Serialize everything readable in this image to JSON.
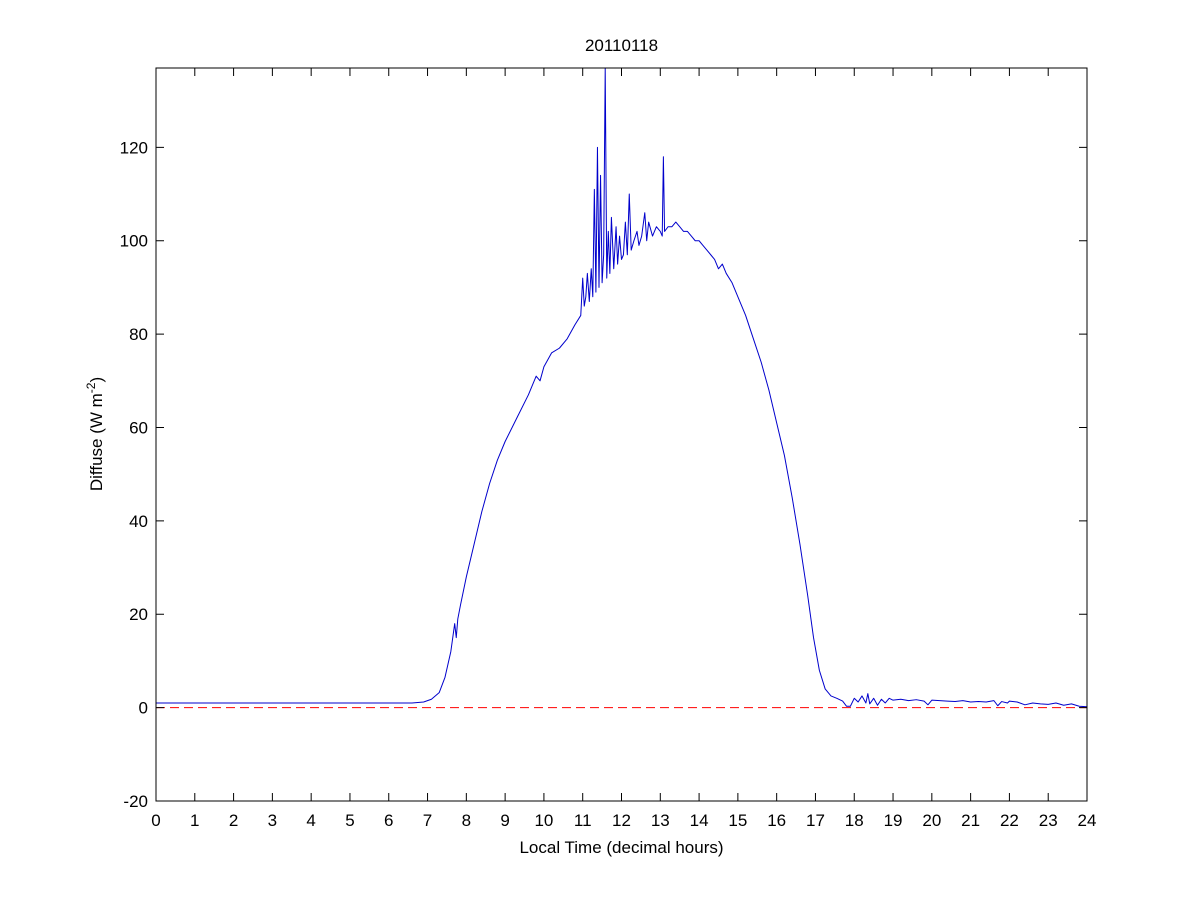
{
  "chart_data": {
    "type": "line",
    "title": "20110118",
    "xlabel": "Local Time (decimal hours)",
    "ylabel_main": "Diffuse (W m",
    "ylabel_sup": "-2",
    "ylabel_close": ")",
    "xlim": [
      0,
      24
    ],
    "ylim": [
      -20,
      137
    ],
    "xticks": [
      0,
      1,
      2,
      3,
      4,
      5,
      6,
      7,
      8,
      9,
      10,
      11,
      12,
      13,
      14,
      15,
      16,
      17,
      18,
      19,
      20,
      21,
      22,
      23,
      24
    ],
    "yticks": [
      -20,
      0,
      20,
      40,
      60,
      80,
      100,
      120
    ],
    "grid": false,
    "series": [
      {
        "color": "#0000cc",
        "style": "solid",
        "points": [
          [
            0,
            1.0
          ],
          [
            0.5,
            1.0
          ],
          [
            1,
            1.0
          ],
          [
            2,
            1.0
          ],
          [
            3,
            1.0
          ],
          [
            4,
            1.0
          ],
          [
            5,
            1.0
          ],
          [
            6,
            1.0
          ],
          [
            6.6,
            1.0
          ],
          [
            6.9,
            1.2
          ],
          [
            7.1,
            1.8
          ],
          [
            7.3,
            3.2
          ],
          [
            7.45,
            6.5
          ],
          [
            7.6,
            12
          ],
          [
            7.7,
            18
          ],
          [
            7.74,
            15
          ],
          [
            7.78,
            19
          ],
          [
            7.85,
            22
          ],
          [
            8.0,
            28
          ],
          [
            8.2,
            35
          ],
          [
            8.4,
            42
          ],
          [
            8.6,
            48
          ],
          [
            8.8,
            53
          ],
          [
            9.0,
            57
          ],
          [
            9.3,
            62
          ],
          [
            9.6,
            67
          ],
          [
            9.8,
            71
          ],
          [
            9.9,
            70
          ],
          [
            10.0,
            73
          ],
          [
            10.2,
            76
          ],
          [
            10.4,
            77
          ],
          [
            10.6,
            79
          ],
          [
            10.8,
            82
          ],
          [
            10.95,
            84
          ],
          [
            11.0,
            92
          ],
          [
            11.04,
            86
          ],
          [
            11.08,
            88
          ],
          [
            11.12,
            93
          ],
          [
            11.17,
            87
          ],
          [
            11.22,
            94
          ],
          [
            11.26,
            88
          ],
          [
            11.3,
            111
          ],
          [
            11.34,
            89
          ],
          [
            11.38,
            120
          ],
          [
            11.42,
            90
          ],
          [
            11.46,
            114
          ],
          [
            11.5,
            91
          ],
          [
            11.54,
            97
          ],
          [
            11.58,
            137
          ],
          [
            11.62,
            92
          ],
          [
            11.66,
            102
          ],
          [
            11.7,
            93
          ],
          [
            11.74,
            105
          ],
          [
            11.8,
            94
          ],
          [
            11.86,
            103
          ],
          [
            11.9,
            95
          ],
          [
            11.95,
            101
          ],
          [
            12.0,
            96
          ],
          [
            12.05,
            97
          ],
          [
            12.1,
            104
          ],
          [
            12.15,
            97
          ],
          [
            12.2,
            110
          ],
          [
            12.25,
            98
          ],
          [
            12.32,
            100
          ],
          [
            12.4,
            102
          ],
          [
            12.45,
            99
          ],
          [
            12.52,
            101
          ],
          [
            12.6,
            106
          ],
          [
            12.65,
            100
          ],
          [
            12.7,
            104
          ],
          [
            12.8,
            101
          ],
          [
            12.9,
            103
          ],
          [
            13.0,
            102
          ],
          [
            13.05,
            101
          ],
          [
            13.08,
            118
          ],
          [
            13.11,
            102
          ],
          [
            13.2,
            103
          ],
          [
            13.3,
            103
          ],
          [
            13.4,
            104
          ],
          [
            13.5,
            103
          ],
          [
            13.6,
            102
          ],
          [
            13.7,
            102
          ],
          [
            13.8,
            101
          ],
          [
            13.9,
            100
          ],
          [
            14.0,
            100
          ],
          [
            14.1,
            99
          ],
          [
            14.2,
            98
          ],
          [
            14.3,
            97
          ],
          [
            14.4,
            96
          ],
          [
            14.5,
            94
          ],
          [
            14.6,
            95
          ],
          [
            14.7,
            93
          ],
          [
            14.85,
            91
          ],
          [
            15.0,
            88
          ],
          [
            15.2,
            84
          ],
          [
            15.4,
            79
          ],
          [
            15.6,
            74
          ],
          [
            15.8,
            68
          ],
          [
            16.0,
            61
          ],
          [
            16.2,
            54
          ],
          [
            16.4,
            45
          ],
          [
            16.6,
            35
          ],
          [
            16.8,
            24
          ],
          [
            16.95,
            15
          ],
          [
            17.1,
            8
          ],
          [
            17.25,
            4
          ],
          [
            17.4,
            2.5
          ],
          [
            17.55,
            2.0
          ],
          [
            17.7,
            1.4
          ],
          [
            17.8,
            0.3
          ],
          [
            17.9,
            0.3
          ],
          [
            18.0,
            2.0
          ],
          [
            18.1,
            1.2
          ],
          [
            18.2,
            2.5
          ],
          [
            18.3,
            1.0
          ],
          [
            18.35,
            3.0
          ],
          [
            18.4,
            0.8
          ],
          [
            18.5,
            2.0
          ],
          [
            18.6,
            0.5
          ],
          [
            18.7,
            1.8
          ],
          [
            18.8,
            1.0
          ],
          [
            18.9,
            2.0
          ],
          [
            19.0,
            1.6
          ],
          [
            19.2,
            1.8
          ],
          [
            19.4,
            1.5
          ],
          [
            19.6,
            1.7
          ],
          [
            19.8,
            1.4
          ],
          [
            19.9,
            0.6
          ],
          [
            20.0,
            1.6
          ],
          [
            20.2,
            1.5
          ],
          [
            20.4,
            1.4
          ],
          [
            20.6,
            1.3
          ],
          [
            20.8,
            1.5
          ],
          [
            21.0,
            1.2
          ],
          [
            21.2,
            1.3
          ],
          [
            21.4,
            1.2
          ],
          [
            21.6,
            1.5
          ],
          [
            21.7,
            0.4
          ],
          [
            21.8,
            1.3
          ],
          [
            21.95,
            1.0
          ],
          [
            22.0,
            1.4
          ],
          [
            22.2,
            1.2
          ],
          [
            22.4,
            0.6
          ],
          [
            22.6,
            1.0
          ],
          [
            22.8,
            0.8
          ],
          [
            23.0,
            0.7
          ],
          [
            23.2,
            1.0
          ],
          [
            23.4,
            0.5
          ],
          [
            23.6,
            0.8
          ],
          [
            23.8,
            0.3
          ],
          [
            24.0,
            0.2
          ]
        ]
      },
      {
        "color": "#ff0000",
        "style": "dashed",
        "points": [
          [
            0,
            0
          ],
          [
            24,
            0
          ]
        ]
      }
    ]
  }
}
